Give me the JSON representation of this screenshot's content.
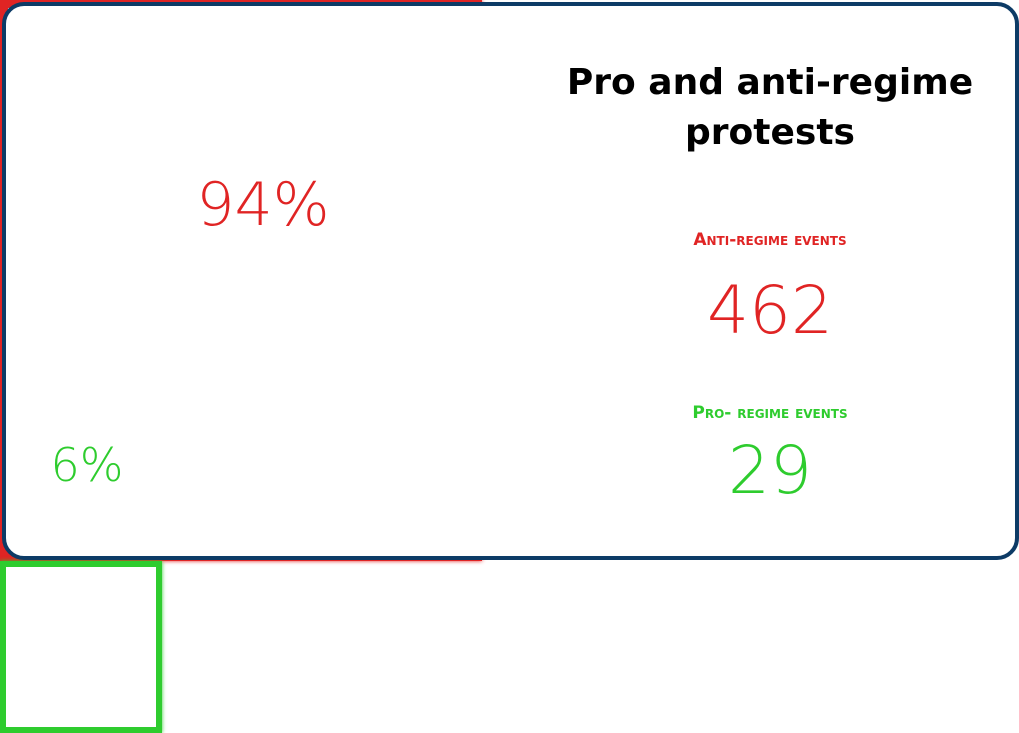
{
  "chart_data": {
    "type": "nested-squares",
    "title": "Pro and anti-regime protests",
    "categories": [
      "Anti-regime events",
      "Pro- regime events"
    ],
    "values": [
      94,
      6
    ],
    "value_labels": [
      "94%",
      "6%"
    ],
    "counts": [
      462,
      29
    ],
    "colors": [
      "#e02424",
      "#2ecc2e"
    ]
  }
}
